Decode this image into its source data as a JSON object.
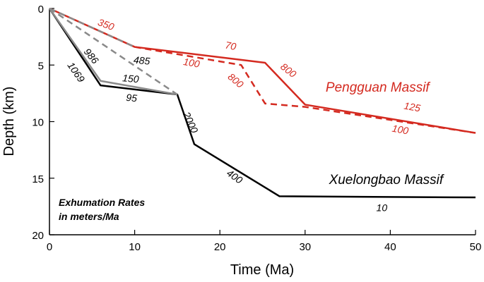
{
  "chart_data": {
    "type": "line",
    "xlabel": "Time (Ma)",
    "ylabel": "Depth (km)",
    "xlim": [
      0,
      50
    ],
    "ylim": [
      20,
      0
    ],
    "y_inverted": true,
    "xticks": [
      0,
      10,
      20,
      30,
      40,
      50
    ],
    "yticks": [
      0,
      5,
      10,
      15,
      20
    ],
    "grid": false,
    "legend_note": [
      "Exhumation Rates",
      "in meters/Ma"
    ],
    "series_labels": [
      {
        "text": "Pengguan Massif",
        "color": "#d42a20",
        "x": 38.5,
        "y": 7.35
      },
      {
        "text": "Xuelongbao Massif",
        "color": "#000000",
        "x": 39.5,
        "y": 15.5
      }
    ],
    "series": [
      {
        "name": "Pengguan Massif (solid)",
        "group": "Pengguan Massif",
        "color": "#d42a20",
        "dash": "solid",
        "x": [
          0,
          10,
          25.3,
          30,
          50
        ],
        "y": [
          0,
          3.4,
          4.8,
          8.5,
          11
        ]
      },
      {
        "name": "Pengguan Massif (dashed)",
        "group": "Pengguan Massif",
        "color": "#d42a20",
        "dash": "dashed",
        "x": [
          10,
          22.5,
          25.3,
          30,
          50
        ],
        "y": [
          3.4,
          5.0,
          8.4,
          8.7,
          11
        ]
      },
      {
        "name": "Xuelongbao Massif",
        "group": "Xuelongbao Massif",
        "color": "#000000",
        "dash": "solid",
        "x": [
          0,
          6,
          15,
          17,
          27,
          50
        ],
        "y": [
          0,
          6.8,
          7.6,
          12,
          16.6,
          16.7
        ]
      },
      {
        "name": "Xuelongbao Massif (gray solid)",
        "group": "Xuelongbao Massif",
        "color": "#8a8a8a",
        "dash": "solid",
        "x": [
          0,
          6,
          15
        ],
        "y": [
          0,
          6.4,
          7.6
        ]
      },
      {
        "name": "Xuelongbao Massif (gray dashed)",
        "group": "Xuelongbao Massif",
        "color": "#8a8a8a",
        "dash": "dashed",
        "x": [
          0,
          15
        ],
        "y": [
          0,
          7.6
        ]
      },
      {
        "name": "Xuelongbao Massif (gray dashed 2)",
        "group": "Xuelongbao Massif",
        "color": "#8a8a8a",
        "dash": "dashed",
        "x": [
          0,
          10
        ],
        "y": [
          0,
          3.4
        ]
      }
    ],
    "annotations": [
      {
        "text": "350",
        "color": "#d42a20",
        "x": 6.5,
        "y": 1.7,
        "rotate": 20
      },
      {
        "text": "70",
        "color": "#d42a20",
        "x": 21.2,
        "y": 3.6,
        "rotate": 10
      },
      {
        "text": "800",
        "color": "#d42a20",
        "x": 27.8,
        "y": 5.7,
        "rotate": 38
      },
      {
        "text": "100",
        "color": "#d42a20",
        "x": 16.6,
        "y": 5.1,
        "rotate": 10
      },
      {
        "text": "800",
        "color": "#d42a20",
        "x": 21.6,
        "y": 6.6,
        "rotate": 40
      },
      {
        "text": "125",
        "color": "#d42a20",
        "x": 42.5,
        "y": 9.0,
        "rotate": 10
      },
      {
        "text": "100",
        "color": "#d42a20",
        "x": 41.1,
        "y": 11.0,
        "rotate": 10
      },
      {
        "text": "485",
        "color": "#000000",
        "x": 10.8,
        "y": 4.9,
        "rotate": 5
      },
      {
        "text": "986",
        "color": "#000000",
        "x": 4.6,
        "y": 4.4,
        "rotate": 50
      },
      {
        "text": "1069",
        "color": "#000000",
        "x": 2.8,
        "y": 5.8,
        "rotate": 55
      },
      {
        "text": "150",
        "color": "#000000",
        "x": 9.5,
        "y": 6.5,
        "rotate": 5
      },
      {
        "text": "95",
        "color": "#000000",
        "x": 9.6,
        "y": 8.2,
        "rotate": 5
      },
      {
        "text": "2000",
        "color": "#000000",
        "x": 16.2,
        "y": 10.2,
        "rotate": 65
      },
      {
        "text": "400",
        "color": "#000000",
        "x": 21.5,
        "y": 15.1,
        "rotate": 35
      },
      {
        "text": "10",
        "color": "#000000",
        "x": 39.0,
        "y": 17.9,
        "rotate": 0
      }
    ]
  }
}
